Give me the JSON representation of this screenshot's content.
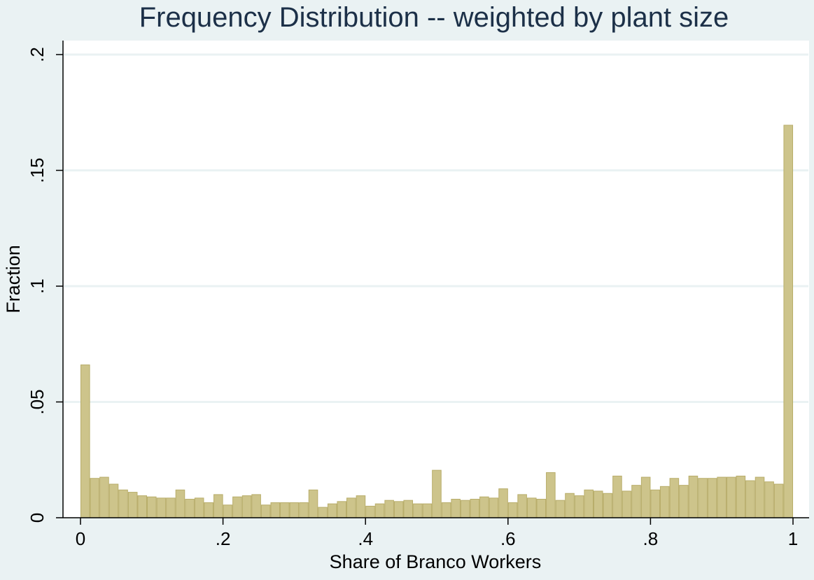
{
  "chart_data": {
    "type": "bar",
    "title": "Frequency Distribution -- weighted by plant size",
    "xlabel": "Share of Branco Workers",
    "ylabel": "Fraction",
    "xlim": [
      0,
      1
    ],
    "ylim": [
      0,
      0.2
    ],
    "x_ticks": [
      "0",
      ".2",
      ".4",
      ".6",
      ".8",
      "1"
    ],
    "x_tick_values": [
      0,
      0.2,
      0.4,
      0.6,
      0.8,
      1
    ],
    "y_ticks": [
      "0",
      ".05",
      ".1",
      ".15",
      ".2"
    ],
    "y_tick_values": [
      0,
      0.05,
      0.1,
      0.15,
      0.2
    ],
    "grid": true,
    "bar_width": 0.01333,
    "bar_color": "#cdc48b",
    "plot_background": "#ffffff",
    "page_background": "#eaf2f3",
    "x": [
      0,
      0.0133,
      0.0267,
      0.04,
      0.0533,
      0.0667,
      0.08,
      0.0933,
      0.1067,
      0.12,
      0.1333,
      0.1467,
      0.16,
      0.1733,
      0.1867,
      0.2,
      0.2133,
      0.2267,
      0.24,
      0.2533,
      0.2667,
      0.28,
      0.2933,
      0.3067,
      0.32,
      0.3333,
      0.3467,
      0.36,
      0.3733,
      0.3867,
      0.4,
      0.4133,
      0.4267,
      0.44,
      0.4533,
      0.4667,
      0.48,
      0.4933,
      0.5067,
      0.52,
      0.5333,
      0.5467,
      0.56,
      0.5733,
      0.5867,
      0.6,
      0.6133,
      0.6267,
      0.64,
      0.6533,
      0.6667,
      0.68,
      0.6933,
      0.7067,
      0.72,
      0.7333,
      0.7467,
      0.76,
      0.7733,
      0.7867,
      0.8,
      0.8133,
      0.8267,
      0.84,
      0.8533,
      0.8667,
      0.88,
      0.8933,
      0.9067,
      0.92,
      0.9333,
      0.9467,
      0.96,
      0.9733,
      0.9867
    ],
    "values": [
      0.066,
      0.017,
      0.0175,
      0.0145,
      0.012,
      0.011,
      0.0095,
      0.009,
      0.0085,
      0.0085,
      0.012,
      0.008,
      0.0085,
      0.0065,
      0.01,
      0.0055,
      0.009,
      0.0095,
      0.01,
      0.0055,
      0.0065,
      0.0065,
      0.0065,
      0.0065,
      0.012,
      0.0045,
      0.006,
      0.007,
      0.0085,
      0.0095,
      0.005,
      0.006,
      0.0075,
      0.007,
      0.0075,
      0.006,
      0.006,
      0.0205,
      0.0065,
      0.008,
      0.0075,
      0.008,
      0.009,
      0.0085,
      0.0125,
      0.0065,
      0.01,
      0.0085,
      0.008,
      0.0195,
      0.0075,
      0.0105,
      0.0095,
      0.012,
      0.0115,
      0.0105,
      0.018,
      0.0115,
      0.014,
      0.0175,
      0.012,
      0.0135,
      0.017,
      0.014,
      0.018,
      0.017,
      0.017,
      0.0175,
      0.0175,
      0.018,
      0.016,
      0.0175,
      0.0155,
      0.0145,
      0.1695
    ]
  }
}
